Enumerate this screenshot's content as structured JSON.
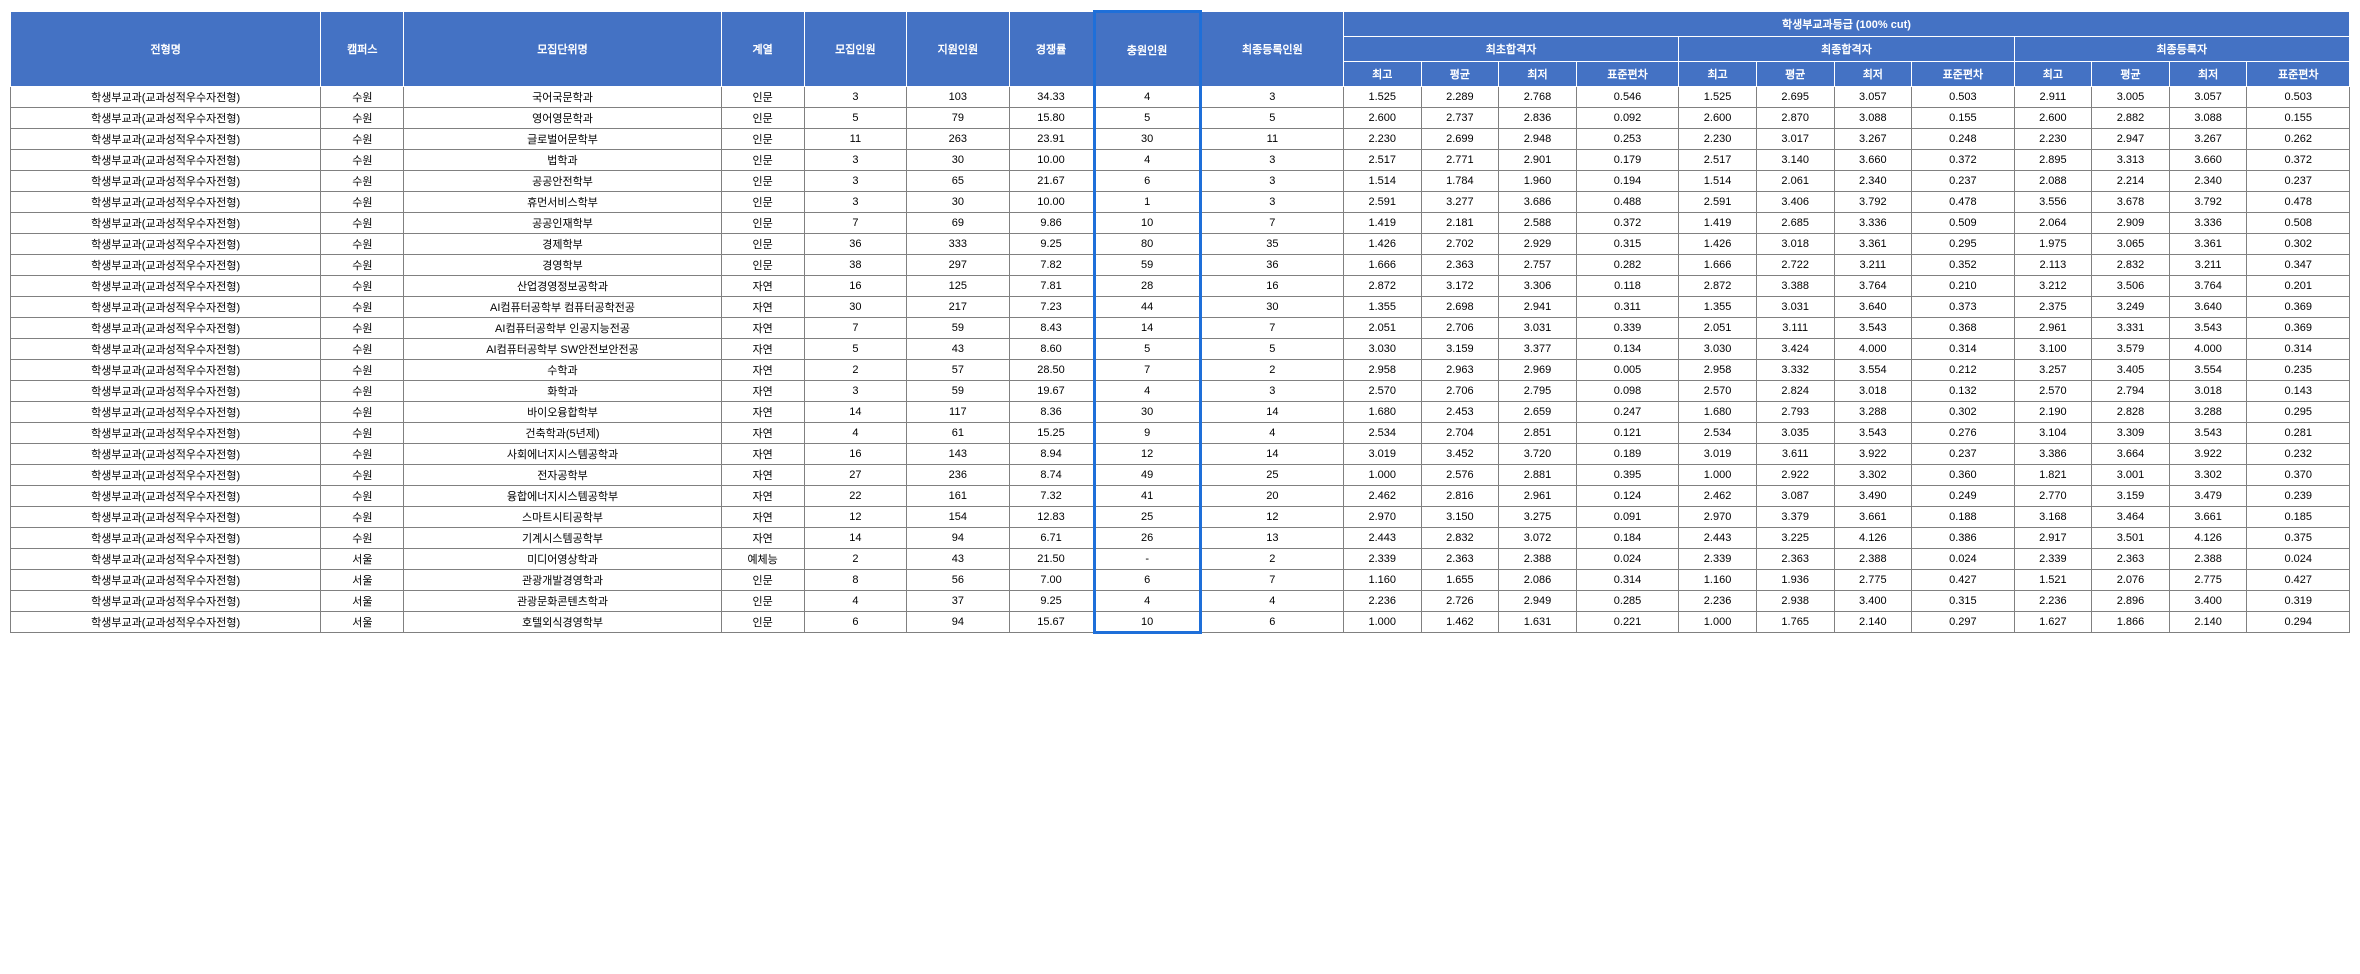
{
  "table": {
    "header": {
      "col_admission": "전형명",
      "col_campus": "캠퍼스",
      "col_department": "모집단위명",
      "col_track": "계열",
      "col_quota": "모집인원",
      "col_applicants": "지원인원",
      "col_ratio": "경쟁률",
      "col_additional": "충원인원",
      "col_final_enroll": "최종등록인원",
      "col_grade_group": "학생부교과등급 (100% cut)",
      "col_initial_pass": "최초합격자",
      "col_final_pass": "최종합격자",
      "col_final_reg": "최종등록자",
      "col_max": "최고",
      "col_avg": "평균",
      "col_min": "최저",
      "col_sd": "표준편차"
    },
    "rows": [
      {
        "admission": "학생부교과(교과성적우수자전형)",
        "campus": "수원",
        "dept": "국어국문학과",
        "track": "인문",
        "quota": "3",
        "applicants": "103",
        "ratio": "34.33",
        "additional": "4",
        "final_enroll": "3",
        "ip_max": "1.525",
        "ip_avg": "2.289",
        "ip_min": "2.768",
        "ip_sd": "0.546",
        "fp_max": "1.525",
        "fp_avg": "2.695",
        "fp_min": "3.057",
        "fp_sd": "0.503",
        "fr_max": "2.911",
        "fr_avg": "3.005",
        "fr_min": "3.057",
        "fr_sd": "0.503"
      },
      {
        "admission": "학생부교과(교과성적우수자전형)",
        "campus": "수원",
        "dept": "영어영문학과",
        "track": "인문",
        "quota": "5",
        "applicants": "79",
        "ratio": "15.80",
        "additional": "5",
        "final_enroll": "5",
        "ip_max": "2.600",
        "ip_avg": "2.737",
        "ip_min": "2.836",
        "ip_sd": "0.092",
        "fp_max": "2.600",
        "fp_avg": "2.870",
        "fp_min": "3.088",
        "fp_sd": "0.155",
        "fr_max": "2.600",
        "fr_avg": "2.882",
        "fr_min": "3.088",
        "fr_sd": "0.155"
      },
      {
        "admission": "학생부교과(교과성적우수자전형)",
        "campus": "수원",
        "dept": "글로벌어문학부",
        "track": "인문",
        "quota": "11",
        "applicants": "263",
        "ratio": "23.91",
        "additional": "30",
        "final_enroll": "11",
        "ip_max": "2.230",
        "ip_avg": "2.699",
        "ip_min": "2.948",
        "ip_sd": "0.253",
        "fp_max": "2.230",
        "fp_avg": "3.017",
        "fp_min": "3.267",
        "fp_sd": "0.248",
        "fr_max": "2.230",
        "fr_avg": "2.947",
        "fr_min": "3.267",
        "fr_sd": "0.262"
      },
      {
        "admission": "학생부교과(교과성적우수자전형)",
        "campus": "수원",
        "dept": "법학과",
        "track": "인문",
        "quota": "3",
        "applicants": "30",
        "ratio": "10.00",
        "additional": "4",
        "final_enroll": "3",
        "ip_max": "2.517",
        "ip_avg": "2.771",
        "ip_min": "2.901",
        "ip_sd": "0.179",
        "fp_max": "2.517",
        "fp_avg": "3.140",
        "fp_min": "3.660",
        "fp_sd": "0.372",
        "fr_max": "2.895",
        "fr_avg": "3.313",
        "fr_min": "3.660",
        "fr_sd": "0.372"
      },
      {
        "admission": "학생부교과(교과성적우수자전형)",
        "campus": "수원",
        "dept": "공공안전학부",
        "track": "인문",
        "quota": "3",
        "applicants": "65",
        "ratio": "21.67",
        "additional": "6",
        "final_enroll": "3",
        "ip_max": "1.514",
        "ip_avg": "1.784",
        "ip_min": "1.960",
        "ip_sd": "0.194",
        "fp_max": "1.514",
        "fp_avg": "2.061",
        "fp_min": "2.340",
        "fp_sd": "0.237",
        "fr_max": "2.088",
        "fr_avg": "2.214",
        "fr_min": "2.340",
        "fr_sd": "0.237"
      },
      {
        "admission": "학생부교과(교과성적우수자전형)",
        "campus": "수원",
        "dept": "휴먼서비스학부",
        "track": "인문",
        "quota": "3",
        "applicants": "30",
        "ratio": "10.00",
        "additional": "1",
        "final_enroll": "3",
        "ip_max": "2.591",
        "ip_avg": "3.277",
        "ip_min": "3.686",
        "ip_sd": "0.488",
        "fp_max": "2.591",
        "fp_avg": "3.406",
        "fp_min": "3.792",
        "fp_sd": "0.478",
        "fr_max": "3.556",
        "fr_avg": "3.678",
        "fr_min": "3.792",
        "fr_sd": "0.478"
      },
      {
        "admission": "학생부교과(교과성적우수자전형)",
        "campus": "수원",
        "dept": "공공인재학부",
        "track": "인문",
        "quota": "7",
        "applicants": "69",
        "ratio": "9.86",
        "additional": "10",
        "final_enroll": "7",
        "ip_max": "1.419",
        "ip_avg": "2.181",
        "ip_min": "2.588",
        "ip_sd": "0.372",
        "fp_max": "1.419",
        "fp_avg": "2.685",
        "fp_min": "3.336",
        "fp_sd": "0.509",
        "fr_max": "2.064",
        "fr_avg": "2.909",
        "fr_min": "3.336",
        "fr_sd": "0.508"
      },
      {
        "admission": "학생부교과(교과성적우수자전형)",
        "campus": "수원",
        "dept": "경제학부",
        "track": "인문",
        "quota": "36",
        "applicants": "333",
        "ratio": "9.25",
        "additional": "80",
        "final_enroll": "35",
        "ip_max": "1.426",
        "ip_avg": "2.702",
        "ip_min": "2.929",
        "ip_sd": "0.315",
        "fp_max": "1.426",
        "fp_avg": "3.018",
        "fp_min": "3.361",
        "fp_sd": "0.295",
        "fr_max": "1.975",
        "fr_avg": "3.065",
        "fr_min": "3.361",
        "fr_sd": "0.302"
      },
      {
        "admission": "학생부교과(교과성적우수자전형)",
        "campus": "수원",
        "dept": "경영학부",
        "track": "인문",
        "quota": "38",
        "applicants": "297",
        "ratio": "7.82",
        "additional": "59",
        "final_enroll": "36",
        "ip_max": "1.666",
        "ip_avg": "2.363",
        "ip_min": "2.757",
        "ip_sd": "0.282",
        "fp_max": "1.666",
        "fp_avg": "2.722",
        "fp_min": "3.211",
        "fp_sd": "0.352",
        "fr_max": "2.113",
        "fr_avg": "2.832",
        "fr_min": "3.211",
        "fr_sd": "0.347"
      },
      {
        "admission": "학생부교과(교과성적우수자전형)",
        "campus": "수원",
        "dept": "산업경영정보공학과",
        "track": "자연",
        "quota": "16",
        "applicants": "125",
        "ratio": "7.81",
        "additional": "28",
        "final_enroll": "16",
        "ip_max": "2.872",
        "ip_avg": "3.172",
        "ip_min": "3.306",
        "ip_sd": "0.118",
        "fp_max": "2.872",
        "fp_avg": "3.388",
        "fp_min": "3.764",
        "fp_sd": "0.210",
        "fr_max": "3.212",
        "fr_avg": "3.506",
        "fr_min": "3.764",
        "fr_sd": "0.201"
      },
      {
        "admission": "학생부교과(교과성적우수자전형)",
        "campus": "수원",
        "dept": "AI컴퓨터공학부 컴퓨터공학전공",
        "track": "자연",
        "quota": "30",
        "applicants": "217",
        "ratio": "7.23",
        "additional": "44",
        "final_enroll": "30",
        "ip_max": "1.355",
        "ip_avg": "2.698",
        "ip_min": "2.941",
        "ip_sd": "0.311",
        "fp_max": "1.355",
        "fp_avg": "3.031",
        "fp_min": "3.640",
        "fp_sd": "0.373",
        "fr_max": "2.375",
        "fr_avg": "3.249",
        "fr_min": "3.640",
        "fr_sd": "0.369"
      },
      {
        "admission": "학생부교과(교과성적우수자전형)",
        "campus": "수원",
        "dept": "AI컴퓨터공학부 인공지능전공",
        "track": "자연",
        "quota": "7",
        "applicants": "59",
        "ratio": "8.43",
        "additional": "14",
        "final_enroll": "7",
        "ip_max": "2.051",
        "ip_avg": "2.706",
        "ip_min": "3.031",
        "ip_sd": "0.339",
        "fp_max": "2.051",
        "fp_avg": "3.111",
        "fp_min": "3.543",
        "fp_sd": "0.368",
        "fr_max": "2.961",
        "fr_avg": "3.331",
        "fr_min": "3.543",
        "fr_sd": "0.369"
      },
      {
        "admission": "학생부교과(교과성적우수자전형)",
        "campus": "수원",
        "dept": "AI컴퓨터공학부 SW안전보안전공",
        "track": "자연",
        "quota": "5",
        "applicants": "43",
        "ratio": "8.60",
        "additional": "5",
        "final_enroll": "5",
        "ip_max": "3.030",
        "ip_avg": "3.159",
        "ip_min": "3.377",
        "ip_sd": "0.134",
        "fp_max": "3.030",
        "fp_avg": "3.424",
        "fp_min": "4.000",
        "fp_sd": "0.314",
        "fr_max": "3.100",
        "fr_avg": "3.579",
        "fr_min": "4.000",
        "fr_sd": "0.314"
      },
      {
        "admission": "학생부교과(교과성적우수자전형)",
        "campus": "수원",
        "dept": "수학과",
        "track": "자연",
        "quota": "2",
        "applicants": "57",
        "ratio": "28.50",
        "additional": "7",
        "final_enroll": "2",
        "ip_max": "2.958",
        "ip_avg": "2.963",
        "ip_min": "2.969",
        "ip_sd": "0.005",
        "fp_max": "2.958",
        "fp_avg": "3.332",
        "fp_min": "3.554",
        "fp_sd": "0.212",
        "fr_max": "3.257",
        "fr_avg": "3.405",
        "fr_min": "3.554",
        "fr_sd": "0.235"
      },
      {
        "admission": "학생부교과(교과성적우수자전형)",
        "campus": "수원",
        "dept": "화학과",
        "track": "자연",
        "quota": "3",
        "applicants": "59",
        "ratio": "19.67",
        "additional": "4",
        "final_enroll": "3",
        "ip_max": "2.570",
        "ip_avg": "2.706",
        "ip_min": "2.795",
        "ip_sd": "0.098",
        "fp_max": "2.570",
        "fp_avg": "2.824",
        "fp_min": "3.018",
        "fp_sd": "0.132",
        "fr_max": "2.570",
        "fr_avg": "2.794",
        "fr_min": "3.018",
        "fr_sd": "0.143"
      },
      {
        "admission": "학생부교과(교과성적우수자전형)",
        "campus": "수원",
        "dept": "바이오융합학부",
        "track": "자연",
        "quota": "14",
        "applicants": "117",
        "ratio": "8.36",
        "additional": "30",
        "final_enroll": "14",
        "ip_max": "1.680",
        "ip_avg": "2.453",
        "ip_min": "2.659",
        "ip_sd": "0.247",
        "fp_max": "1.680",
        "fp_avg": "2.793",
        "fp_min": "3.288",
        "fp_sd": "0.302",
        "fr_max": "2.190",
        "fr_avg": "2.828",
        "fr_min": "3.288",
        "fr_sd": "0.295"
      },
      {
        "admission": "학생부교과(교과성적우수자전형)",
        "campus": "수원",
        "dept": "건축학과(5년제)",
        "track": "자연",
        "quota": "4",
        "applicants": "61",
        "ratio": "15.25",
        "additional": "9",
        "final_enroll": "4",
        "ip_max": "2.534",
        "ip_avg": "2.704",
        "ip_min": "2.851",
        "ip_sd": "0.121",
        "fp_max": "2.534",
        "fp_avg": "3.035",
        "fp_min": "3.543",
        "fp_sd": "0.276",
        "fr_max": "3.104",
        "fr_avg": "3.309",
        "fr_min": "3.543",
        "fr_sd": "0.281"
      },
      {
        "admission": "학생부교과(교과성적우수자전형)",
        "campus": "수원",
        "dept": "사회에너지시스템공학과",
        "track": "자연",
        "quota": "16",
        "applicants": "143",
        "ratio": "8.94",
        "additional": "12",
        "final_enroll": "14",
        "ip_max": "3.019",
        "ip_avg": "3.452",
        "ip_min": "3.720",
        "ip_sd": "0.189",
        "fp_max": "3.019",
        "fp_avg": "3.611",
        "fp_min": "3.922",
        "fp_sd": "0.237",
        "fr_max": "3.386",
        "fr_avg": "3.664",
        "fr_min": "3.922",
        "fr_sd": "0.232"
      },
      {
        "admission": "학생부교과(교과성적우수자전형)",
        "campus": "수원",
        "dept": "전자공학부",
        "track": "자연",
        "quota": "27",
        "applicants": "236",
        "ratio": "8.74",
        "additional": "49",
        "final_enroll": "25",
        "ip_max": "1.000",
        "ip_avg": "2.576",
        "ip_min": "2.881",
        "ip_sd": "0.395",
        "fp_max": "1.000",
        "fp_avg": "2.922",
        "fp_min": "3.302",
        "fp_sd": "0.360",
        "fr_max": "1.821",
        "fr_avg": "3.001",
        "fr_min": "3.302",
        "fr_sd": "0.370"
      },
      {
        "admission": "학생부교과(교과성적우수자전형)",
        "campus": "수원",
        "dept": "융합에너지시스템공학부",
        "track": "자연",
        "quota": "22",
        "applicants": "161",
        "ratio": "7.32",
        "additional": "41",
        "final_enroll": "20",
        "ip_max": "2.462",
        "ip_avg": "2.816",
        "ip_min": "2.961",
        "ip_sd": "0.124",
        "fp_max": "2.462",
        "fp_avg": "3.087",
        "fp_min": "3.490",
        "fp_sd": "0.249",
        "fr_max": "2.770",
        "fr_avg": "3.159",
        "fr_min": "3.479",
        "fr_sd": "0.239"
      },
      {
        "admission": "학생부교과(교과성적우수자전형)",
        "campus": "수원",
        "dept": "스마트시티공학부",
        "track": "자연",
        "quota": "12",
        "applicants": "154",
        "ratio": "12.83",
        "additional": "25",
        "final_enroll": "12",
        "ip_max": "2.970",
        "ip_avg": "3.150",
        "ip_min": "3.275",
        "ip_sd": "0.091",
        "fp_max": "2.970",
        "fp_avg": "3.379",
        "fp_min": "3.661",
        "fp_sd": "0.188",
        "fr_max": "3.168",
        "fr_avg": "3.464",
        "fr_min": "3.661",
        "fr_sd": "0.185"
      },
      {
        "admission": "학생부교과(교과성적우수자전형)",
        "campus": "수원",
        "dept": "기계시스템공학부",
        "track": "자연",
        "quota": "14",
        "applicants": "94",
        "ratio": "6.71",
        "additional": "26",
        "final_enroll": "13",
        "ip_max": "2.443",
        "ip_avg": "2.832",
        "ip_min": "3.072",
        "ip_sd": "0.184",
        "fp_max": "2.443",
        "fp_avg": "3.225",
        "fp_min": "4.126",
        "fp_sd": "0.386",
        "fr_max": "2.917",
        "fr_avg": "3.501",
        "fr_min": "4.126",
        "fr_sd": "0.375"
      },
      {
        "admission": "학생부교과(교과성적우수자전형)",
        "campus": "서울",
        "dept": "미디어영상학과",
        "track": "예체능",
        "quota": "2",
        "applicants": "43",
        "ratio": "21.50",
        "additional": "-",
        "final_enroll": "2",
        "ip_max": "2.339",
        "ip_avg": "2.363",
        "ip_min": "2.388",
        "ip_sd": "0.024",
        "fp_max": "2.339",
        "fp_avg": "2.363",
        "fp_min": "2.388",
        "fp_sd": "0.024",
        "fr_max": "2.339",
        "fr_avg": "2.363",
        "fr_min": "2.388",
        "fr_sd": "0.024"
      },
      {
        "admission": "학생부교과(교과성적우수자전형)",
        "campus": "서울",
        "dept": "관광개발경영학과",
        "track": "인문",
        "quota": "8",
        "applicants": "56",
        "ratio": "7.00",
        "additional": "6",
        "final_enroll": "7",
        "ip_max": "1.160",
        "ip_avg": "1.655",
        "ip_min": "2.086",
        "ip_sd": "0.314",
        "fp_max": "1.160",
        "fp_avg": "1.936",
        "fp_min": "2.775",
        "fp_sd": "0.427",
        "fr_max": "1.521",
        "fr_avg": "2.076",
        "fr_min": "2.775",
        "fr_sd": "0.427"
      },
      {
        "admission": "학생부교과(교과성적우수자전형)",
        "campus": "서울",
        "dept": "관광문화콘텐츠학과",
        "track": "인문",
        "quota": "4",
        "applicants": "37",
        "ratio": "9.25",
        "additional": "4",
        "final_enroll": "4",
        "ip_max": "2.236",
        "ip_avg": "2.726",
        "ip_min": "2.949",
        "ip_sd": "0.285",
        "fp_max": "2.236",
        "fp_avg": "2.938",
        "fp_min": "3.400",
        "fp_sd": "0.315",
        "fr_max": "2.236",
        "fr_avg": "2.896",
        "fr_min": "3.400",
        "fr_sd": "0.319"
      },
      {
        "admission": "학생부교과(교과성적우수자전형)",
        "campus": "서울",
        "dept": "호텔외식경영학부",
        "track": "인문",
        "quota": "6",
        "applicants": "94",
        "ratio": "15.67",
        "additional": "10",
        "final_enroll": "6",
        "ip_max": "1.000",
        "ip_avg": "1.462",
        "ip_min": "1.631",
        "ip_sd": "0.221",
        "fp_max": "1.000",
        "fp_avg": "1.765",
        "fp_min": "2.140",
        "fp_sd": "0.297",
        "fr_max": "1.627",
        "fr_avg": "1.866",
        "fr_min": "2.140",
        "fr_sd": "0.294"
      }
    ]
  }
}
